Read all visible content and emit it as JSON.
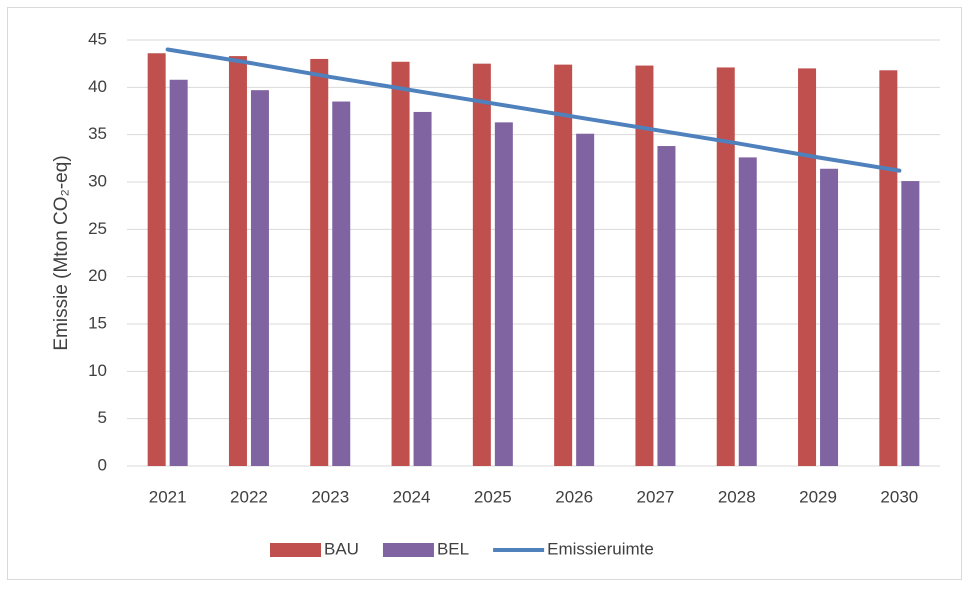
{
  "chart_data": {
    "type": "bar",
    "y_label": "Emissie (Mton CO₂-eq)",
    "categories": [
      "2021",
      "2022",
      "2023",
      "2024",
      "2025",
      "2026",
      "2027",
      "2028",
      "2029",
      "2030"
    ],
    "series": [
      {
        "name": "BAU",
        "type": "bar",
        "color": "#c0504d",
        "values": [
          43.6,
          43.3,
          43.0,
          42.7,
          42.5,
          42.4,
          42.3,
          42.1,
          42.0,
          41.8
        ]
      },
      {
        "name": "BEL",
        "type": "bar",
        "color": "#8064a2",
        "values": [
          40.8,
          39.7,
          38.5,
          37.4,
          36.3,
          35.1,
          33.8,
          32.6,
          31.4,
          30.1
        ]
      },
      {
        "name": "Emissieruimte",
        "type": "line",
        "color": "#4f81bd",
        "values": [
          44.0,
          42.6,
          41.1,
          39.7,
          38.3,
          36.9,
          35.5,
          34.1,
          32.6,
          31.2
        ]
      }
    ],
    "ylim": [
      0,
      45
    ],
    "yticks": [
      0,
      5,
      10,
      15,
      20,
      25,
      30,
      35,
      40,
      45
    ],
    "grid": true
  }
}
